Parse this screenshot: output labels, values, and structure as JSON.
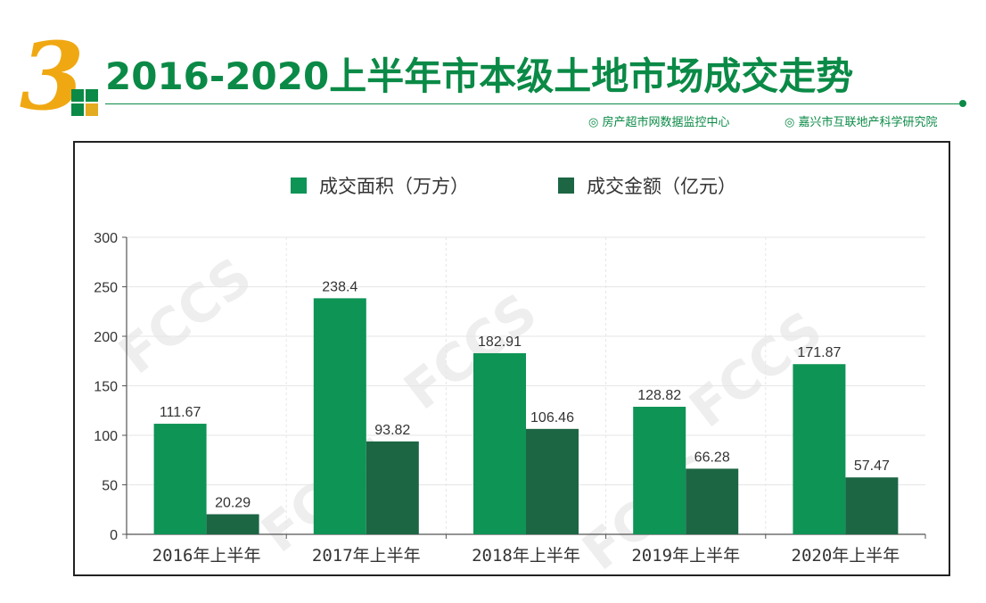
{
  "header": {
    "section_number": "3",
    "title": "2016-2020上半年市本级土地市场成交走势",
    "source_left": "◎ 房产超市网数据监控中心",
    "source_right": "◎ 嘉兴市互联地产科学研究院",
    "watermark": "FCCS"
  },
  "colors": {
    "accent": "#0a8a46",
    "number": "#f0a812",
    "area": "#0e9455",
    "amount": "#1c6644",
    "gold_square": "#e3ab1f",
    "grid": "#e6e6e6"
  },
  "chart_data": {
    "type": "bar",
    "title": "",
    "xlabel": "",
    "ylabel": "",
    "categories": [
      "2016年上半年",
      "2017年上半年",
      "2018年上半年",
      "2019年上半年",
      "2020年上半年"
    ],
    "series": [
      {
        "name": "成交面积（万方）",
        "values": [
          111.67,
          238.4,
          182.91,
          128.82,
          171.87
        ],
        "color": "#0e9455"
      },
      {
        "name": "成交金额（亿元）",
        "values": [
          20.29,
          93.82,
          106.46,
          66.28,
          57.47
        ],
        "color": "#1c6644"
      }
    ],
    "ylim": [
      0,
      300
    ],
    "yticks": [
      0,
      50,
      100,
      150,
      200,
      250,
      300
    ],
    "grid": true,
    "legend_position": "top-center"
  }
}
